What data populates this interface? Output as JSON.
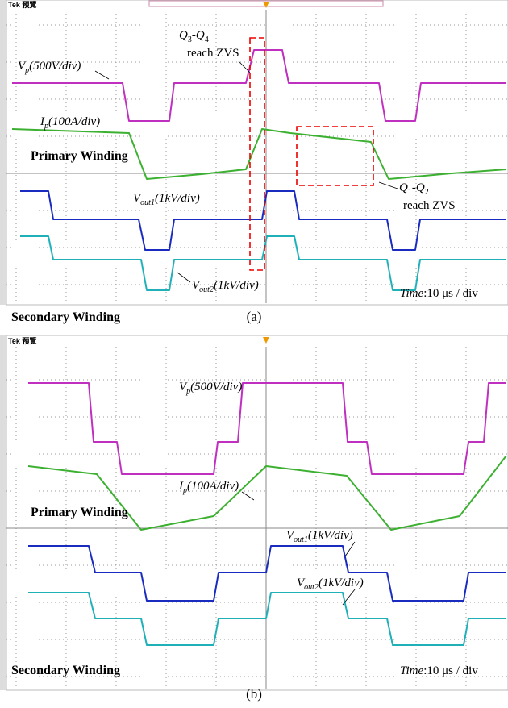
{
  "figures": [
    {
      "scope_label": "Tek 預覽",
      "vp": {
        "base": "V",
        "sub": "p",
        "scale": "(500V/div)"
      },
      "ip": {
        "base": "I",
        "sub": "p",
        "scale": "(100A/div)"
      },
      "vout1": {
        "base": "V",
        "sub": "out1",
        "scale": "(1kV/div)"
      },
      "vout2": {
        "base": "V",
        "sub": "out2",
        "scale": "(1kV/div)"
      },
      "primary": "Primary Winding",
      "secondary": "Secondary Winding",
      "time": {
        "name": "Time",
        "value": ":10 μs / div"
      },
      "zvs_34": {
        "first": "Q",
        "first_sub": "3",
        "dash": "-",
        "second": "Q",
        "second_sub": "4",
        "note": "reach ZVS"
      },
      "zvs_12": {
        "first": "Q",
        "first_sub": "1",
        "dash": "-",
        "second": "Q",
        "second_sub": "2",
        "note": "reach ZVS"
      },
      "caption": "(a)"
    },
    {
      "scope_label": "Tek 預覽",
      "vp": {
        "base": "V",
        "sub": "p",
        "scale": "(500V/div)"
      },
      "ip": {
        "base": "I",
        "sub": "p",
        "scale": "(100A/div)"
      },
      "vout1": {
        "base": "V",
        "sub": "out1",
        "scale": "(1kV/div)"
      },
      "vout2": {
        "base": "V",
        "sub": "out2",
        "scale": "(1kV/div)"
      },
      "primary": "Primary Winding",
      "secondary": "Secondary Winding",
      "time": {
        "name": "Time",
        "value": ":10 μs / div"
      },
      "caption": "(b)"
    }
  ]
}
